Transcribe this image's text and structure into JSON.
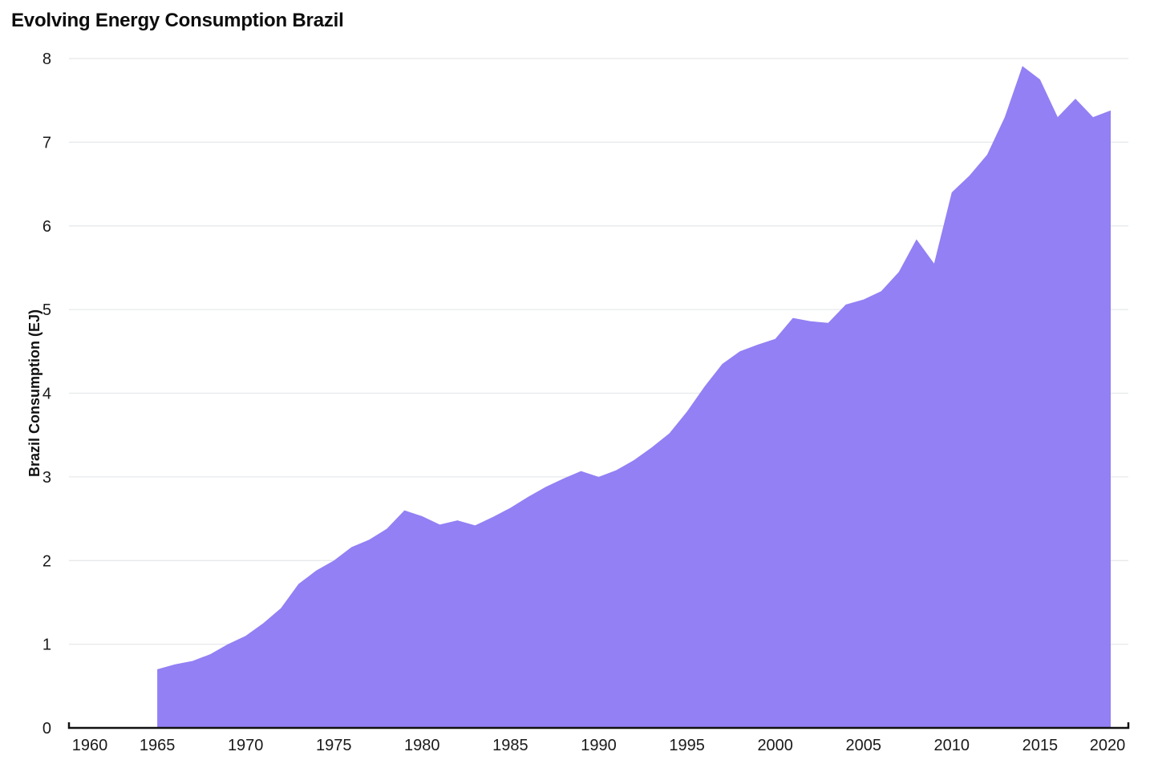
{
  "title": "Evolving Energy Consumption Brazil",
  "colors": {
    "background": "#ffffff",
    "area": "#9280f4",
    "grid": "#e6e8eb",
    "axis": "#111111",
    "text": "#1a1a1a",
    "title_text": "#0d0d0d"
  },
  "chart_data": {
    "type": "area",
    "title": "Evolving Energy Consumption Brazil",
    "xlabel": "",
    "ylabel": "Brazil Consumption (EJ)",
    "series_name": "Brazil Consumption (EJ)",
    "x": [
      1965,
      1966,
      1967,
      1968,
      1969,
      1970,
      1971,
      1972,
      1973,
      1974,
      1975,
      1976,
      1977,
      1978,
      1979,
      1980,
      1981,
      1982,
      1983,
      1984,
      1985,
      1986,
      1987,
      1988,
      1989,
      1990,
      1991,
      1992,
      1993,
      1994,
      1995,
      1996,
      1997,
      1998,
      1999,
      2000,
      2001,
      2002,
      2003,
      2004,
      2005,
      2006,
      2007,
      2008,
      2009,
      2010,
      2011,
      2012,
      2013,
      2014,
      2015,
      2016,
      2017,
      2018,
      2019
    ],
    "values": [
      0.7,
      0.76,
      0.8,
      0.88,
      1.0,
      1.1,
      1.25,
      1.43,
      1.72,
      1.88,
      2.0,
      2.16,
      2.25,
      2.38,
      2.6,
      2.53,
      2.43,
      2.48,
      2.42,
      2.52,
      2.63,
      2.76,
      2.88,
      2.98,
      3.07,
      3.0,
      3.08,
      3.2,
      3.35,
      3.52,
      3.78,
      4.08,
      4.35,
      4.5,
      4.58,
      4.65,
      4.9,
      4.86,
      4.84,
      5.06,
      5.12,
      5.22,
      5.45,
      5.84,
      5.55,
      6.4,
      6.6,
      6.85,
      7.3,
      7.91,
      7.75,
      7.3,
      7.52,
      7.3,
      7.38
    ],
    "xlim": [
      1960,
      2020
    ],
    "ylim": [
      0,
      8
    ],
    "x_ticks": [
      1960,
      1965,
      1970,
      1975,
      1980,
      1985,
      1990,
      1995,
      2000,
      2005,
      2010,
      2015,
      2020
    ],
    "y_ticks": [
      0,
      1,
      2,
      3,
      4,
      5,
      6,
      7,
      8
    ],
    "grid": "horizontal-only",
    "legend": "none",
    "area_color": "#9280f4"
  }
}
